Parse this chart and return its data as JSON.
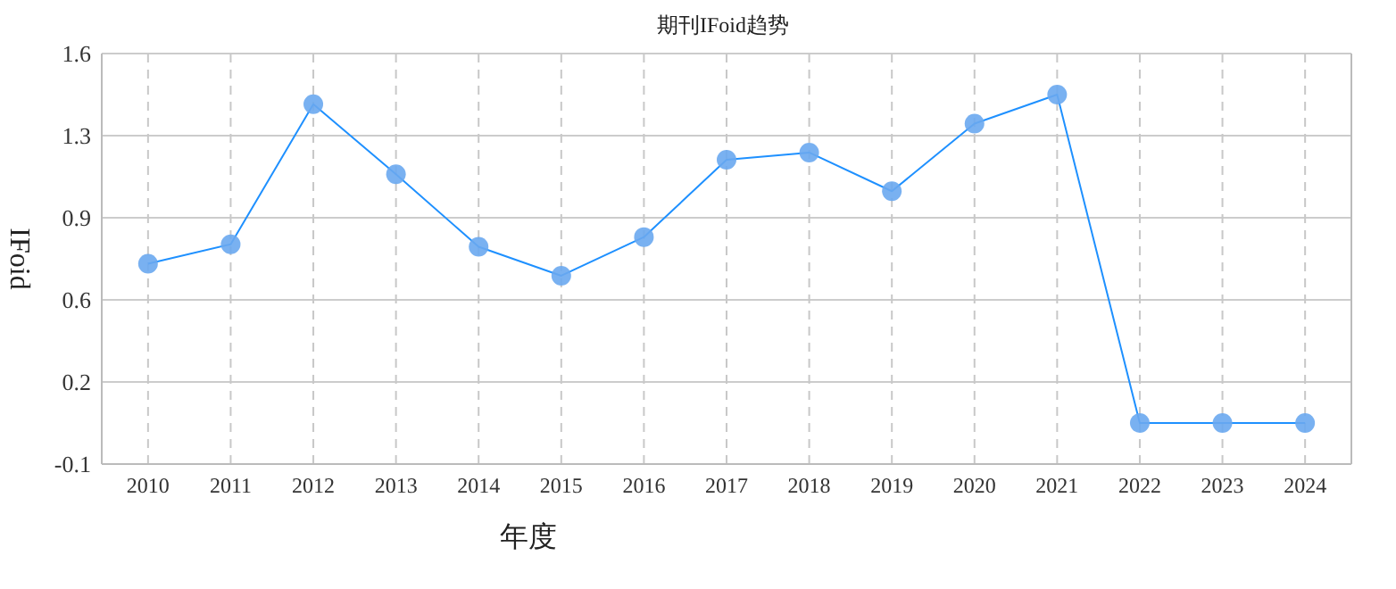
{
  "chart_data": {
    "type": "line",
    "title": "期刊IFoid趋势",
    "xlabel": "年度",
    "ylabel": "IFoid",
    "categories": [
      "2010",
      "2011",
      "2012",
      "2013",
      "2014",
      "2015",
      "2016",
      "2017",
      "2018",
      "2019",
      "2020",
      "2021",
      "2022",
      "2023",
      "2024"
    ],
    "series": [
      {
        "color": "#1e90ff",
        "values": [
          0.73,
          0.81,
          1.39,
          1.1,
          0.8,
          0.68,
          0.84,
          1.16,
          1.19,
          1.03,
          1.31,
          1.43,
          0.07,
          0.07,
          0.07
        ]
      }
    ],
    "ylim": [
      -0.1,
      1.6
    ],
    "yticks": [
      -0.1,
      {
        "value": 0.24,
        "label": "0.2"
      },
      {
        "value": 0.58,
        "label": "0.6"
      },
      {
        "value": 0.92,
        "label": "0.9"
      },
      {
        "value": 1.26,
        "label": "1.3"
      },
      1.6
    ],
    "grid": true,
    "marker": "circle",
    "line_style": "solid"
  }
}
